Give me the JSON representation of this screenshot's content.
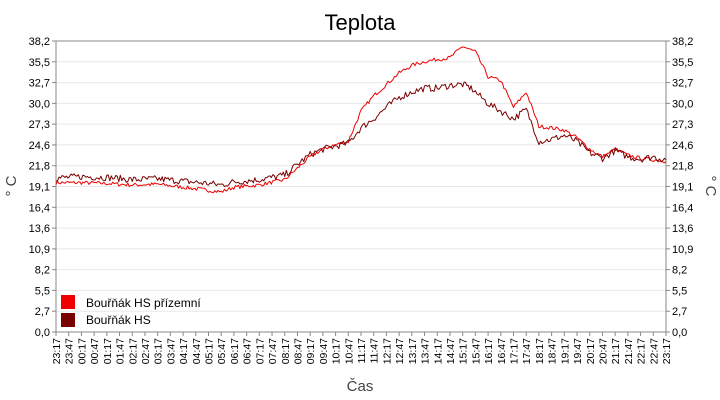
{
  "chart_data": {
    "type": "line",
    "title": "Teplota",
    "xlabel": "Čas",
    "ylabel": "° C",
    "ylim": [
      0,
      38.2
    ],
    "yticks": [
      "0,0",
      "2,7",
      "5,5",
      "8,2",
      "10,9",
      "13,6",
      "16,4",
      "19,1",
      "21,8",
      "24,6",
      "27,3",
      "30,0",
      "32,7",
      "35,5",
      "38,2"
    ],
    "xticks": [
      "23:17",
      "23:47",
      "00:17",
      "00:47",
      "01:17",
      "01:47",
      "02:17",
      "02:47",
      "03:17",
      "03:47",
      "04:17",
      "04:47",
      "05:17",
      "05:47",
      "06:17",
      "06:47",
      "07:17",
      "07:47",
      "08:17",
      "08:47",
      "09:17",
      "09:47",
      "10:17",
      "10:47",
      "11:17",
      "11:47",
      "12:17",
      "12:47",
      "13:17",
      "13:47",
      "14:17",
      "14:47",
      "15:17",
      "15:47",
      "16:17",
      "16:47",
      "17:17",
      "17:47",
      "18:17",
      "18:47",
      "19:17",
      "19:47",
      "20:17",
      "20:47",
      "21:17",
      "21:47",
      "22:17",
      "22:47",
      "23:17"
    ],
    "grid": true,
    "legend_position": "bottom-left",
    "series": [
      {
        "name": "Bouřňák HS přízemní",
        "color": "#ee0000",
        "x": [
          "23:17",
          "00:17",
          "01:17",
          "02:17",
          "03:17",
          "04:17",
          "05:17",
          "05:47",
          "06:17",
          "07:17",
          "08:17",
          "08:47",
          "09:17",
          "09:47",
          "10:17",
          "10:47",
          "11:17",
          "11:47",
          "12:17",
          "12:47",
          "13:17",
          "13:47",
          "14:17",
          "14:47",
          "15:17",
          "15:37",
          "15:47",
          "16:17",
          "16:47",
          "17:17",
          "17:47",
          "18:17",
          "18:47",
          "19:17",
          "19:47",
          "20:17",
          "20:47",
          "21:17",
          "21:47",
          "22:17",
          "22:47",
          "23:17"
        ],
        "values": [
          19.6,
          19.6,
          19.5,
          19.3,
          19.4,
          19.0,
          18.6,
          18.4,
          19.0,
          19.3,
          20.0,
          21.5,
          23.0,
          24.0,
          24.6,
          25.0,
          29.0,
          31.0,
          32.5,
          34.0,
          35.0,
          35.5,
          35.8,
          36.0,
          37.5,
          37.0,
          36.8,
          33.5,
          33.0,
          29.5,
          31.5,
          27.0,
          26.8,
          26.5,
          25.5,
          24.0,
          23.0,
          24.0,
          23.2,
          22.8,
          22.6,
          22.4
        ]
      },
      {
        "name": "Bouřňák HS",
        "color": "#7a0000",
        "x": [
          "23:17",
          "00:17",
          "01:17",
          "02:17",
          "03:17",
          "04:17",
          "05:17",
          "05:47",
          "06:17",
          "07:17",
          "08:17",
          "08:47",
          "09:17",
          "09:47",
          "10:17",
          "10:47",
          "11:17",
          "11:47",
          "12:17",
          "12:47",
          "13:17",
          "13:47",
          "14:17",
          "14:47",
          "15:17",
          "15:37",
          "15:47",
          "16:17",
          "16:47",
          "17:17",
          "17:47",
          "18:17",
          "18:47",
          "19:17",
          "19:47",
          "20:17",
          "20:47",
          "21:17",
          "21:47",
          "22:17",
          "22:47",
          "23:17"
        ],
        "values": [
          20.2,
          20.4,
          20.3,
          20.0,
          20.1,
          19.8,
          19.5,
          19.3,
          19.7,
          20.0,
          20.6,
          22.0,
          23.3,
          24.0,
          24.4,
          24.8,
          26.8,
          28.0,
          29.5,
          30.8,
          31.5,
          32.0,
          32.0,
          32.4,
          32.5,
          32.0,
          31.5,
          30.0,
          29.0,
          28.0,
          29.2,
          25.0,
          25.3,
          25.8,
          25.0,
          23.5,
          22.8,
          23.8,
          23.0,
          22.7,
          23.0,
          22.6
        ]
      }
    ]
  }
}
